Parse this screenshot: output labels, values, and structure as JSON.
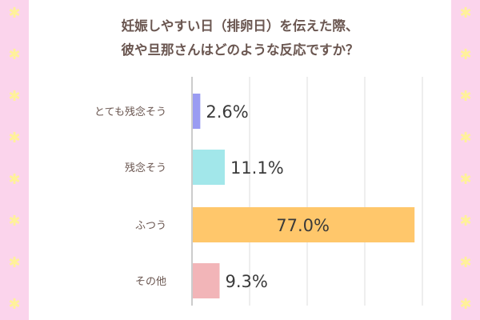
{
  "decor": {
    "icon": "star-icon",
    "strip_color": "#fbd4ec",
    "star_color": "#fff19a",
    "glyph": "✱"
  },
  "title_lines": [
    "妊娠しやすい日（排卵日）を伝えた際、",
    "彼や旦那さんはどのような反応ですか？"
  ],
  "chart_data": {
    "type": "bar",
    "orientation": "horizontal",
    "categories": [
      "とても残念そう",
      "残念そう",
      "ふつう",
      "その他"
    ],
    "values": [
      2.6,
      11.1,
      77.0,
      9.3
    ],
    "value_labels": [
      "2.6%",
      "11.1%",
      "77.0%",
      "9.3%"
    ],
    "colors": [
      "#9a9cf2",
      "#a2e7ea",
      "#ffc76b",
      "#f2b5b8"
    ],
    "xlim": [
      0,
      100
    ],
    "grid": true,
    "xlabel": "",
    "ylabel": ""
  }
}
